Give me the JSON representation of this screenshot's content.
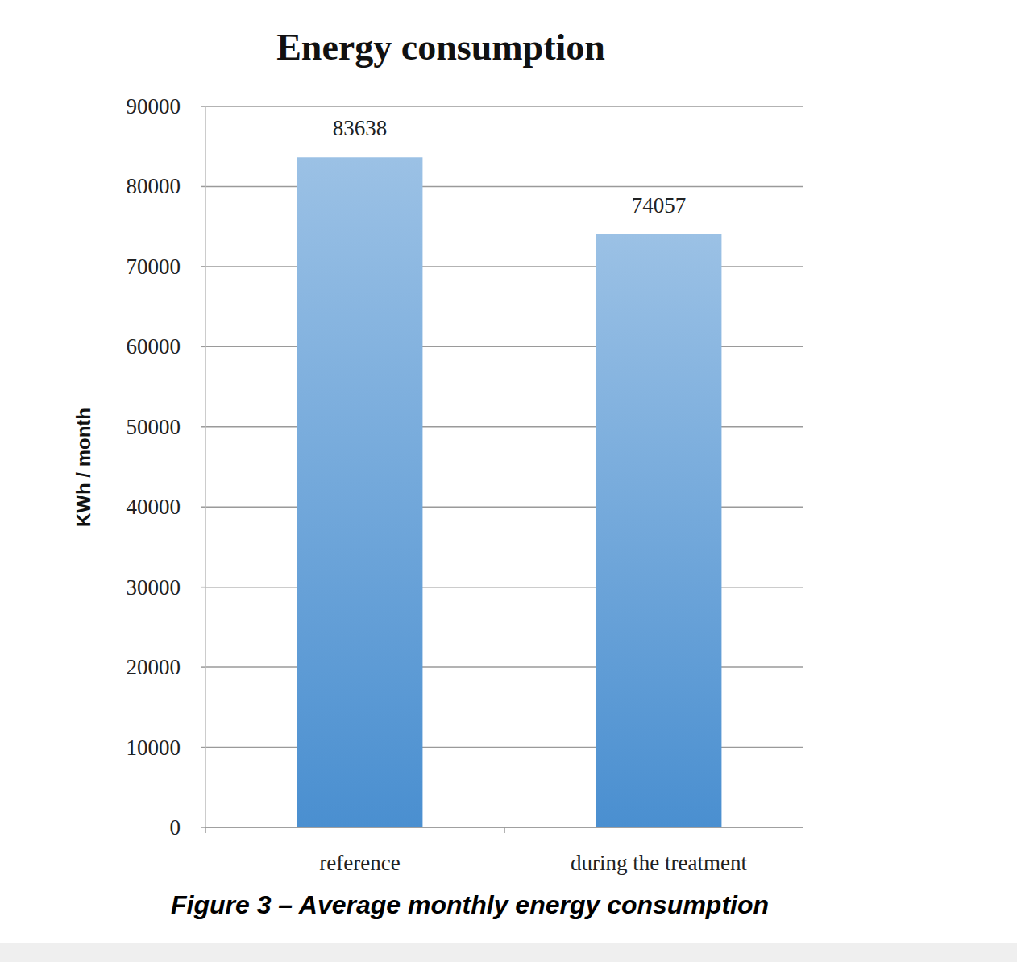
{
  "chart_data": {
    "type": "bar",
    "title": "Energy consumption",
    "y_label": "KWh / month",
    "categories": [
      "reference",
      "during the treatment"
    ],
    "values": [
      83638,
      74057
    ],
    "color": "#4a8fd0",
    "ylim": [
      0,
      90000
    ],
    "yticks": [
      0,
      10000,
      20000,
      30000,
      40000,
      50000,
      60000,
      70000,
      80000,
      90000
    ],
    "grid": true,
    "data_labels": true
  },
  "caption": "Figure 3 – Average monthly energy consumption"
}
